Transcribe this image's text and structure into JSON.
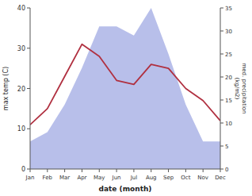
{
  "chart_data": {
    "type": "line",
    "categories": [
      "Jan",
      "Feb",
      "Mar",
      "Apr",
      "May",
      "Jun",
      "Jul",
      "Aug",
      "Sep",
      "Oct",
      "Nov",
      "Dec"
    ],
    "series": [
      {
        "type": "area",
        "axis": "y2",
        "color": "#b0b8e8",
        "values": [
          6,
          8,
          14,
          22,
          31,
          31,
          29,
          35,
          25,
          14,
          6,
          6
        ]
      },
      {
        "type": "line",
        "color": "#b03040",
        "values": [
          11,
          15,
          23,
          31,
          28,
          22,
          21,
          26,
          25,
          20,
          17,
          12
        ]
      }
    ],
    "xlabel": "date (month)",
    "ylabel": "max temp (C)",
    "y2label": "med. precipitation\n(kg/m2)",
    "ylim": [
      0,
      40
    ],
    "yticks": [
      0,
      10,
      20,
      30,
      40
    ],
    "y2lim": [
      0,
      35
    ],
    "y2ticks": [
      0,
      5,
      10,
      15,
      20,
      25,
      30,
      35
    ],
    "grid": false
  }
}
